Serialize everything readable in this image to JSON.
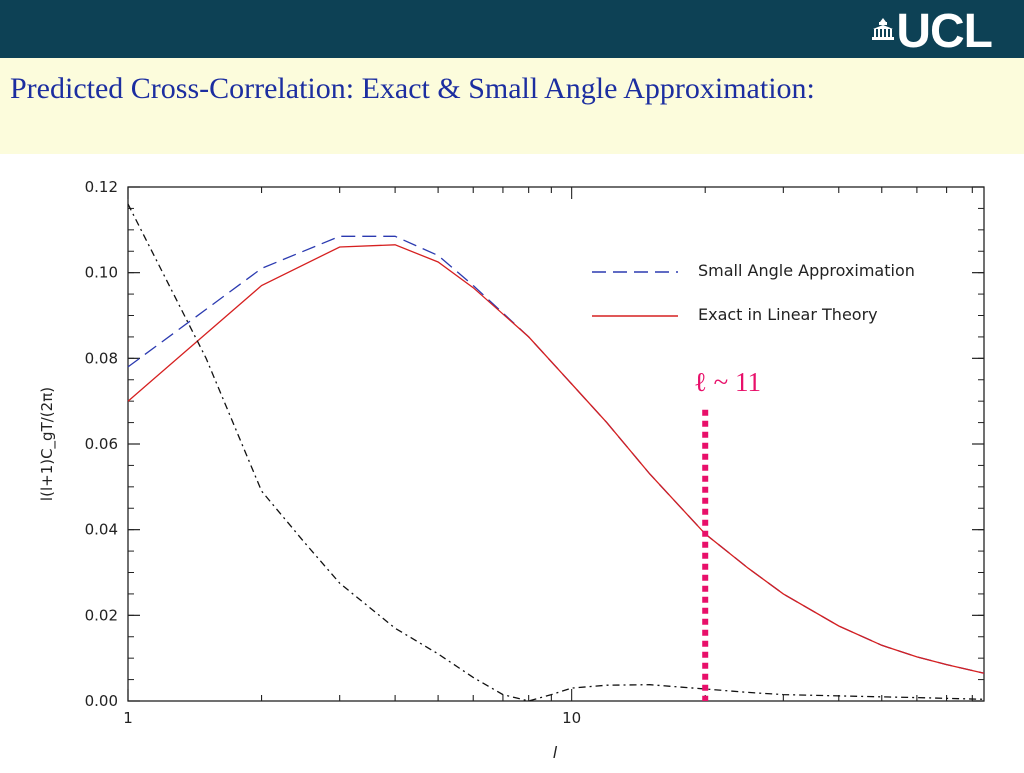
{
  "header": {
    "logo_text": "UCL",
    "title": "Predicted Cross-Correlation: Exact & Small Angle Approximation:"
  },
  "colors": {
    "header_bg": "#0d4155",
    "title_band_bg": "#fcfcdc",
    "title_text": "#1c2ea0",
    "series_small_angle": "#2b3ab0",
    "series_exact": "#d62020",
    "series_third": "#111111",
    "marker": "#e8106a"
  },
  "chart_data": {
    "type": "line",
    "title": "",
    "xlabel": "l",
    "ylabel": "l(l+1)C_gT/(2π)",
    "x_scale": "log",
    "xlim": [
      1,
      85
    ],
    "ylim": [
      0,
      0.12
    ],
    "x_ticks": [
      {
        "value": 1,
        "label": "1"
      },
      {
        "value": 10,
        "label": "10"
      }
    ],
    "y_ticks": [
      {
        "value": 0.0,
        "label": "0.00"
      },
      {
        "value": 0.02,
        "label": "0.02"
      },
      {
        "value": 0.04,
        "label": "0.04"
      },
      {
        "value": 0.06,
        "label": "0.06"
      },
      {
        "value": 0.08,
        "label": "0.08"
      },
      {
        "value": 0.1,
        "label": "0.10"
      },
      {
        "value": 0.12,
        "label": "0.12"
      }
    ],
    "legend_position": "top-right",
    "series": [
      {
        "name": "Small Angle Approximation",
        "style": "dashed",
        "points": [
          [
            1,
            0.078
          ],
          [
            2,
            0.101
          ],
          [
            3,
            0.1085
          ],
          [
            4,
            0.1085
          ],
          [
            5,
            0.104
          ],
          [
            6,
            0.097
          ],
          [
            8,
            0.085
          ],
          [
            10,
            0.074
          ],
          [
            12,
            0.065
          ],
          [
            15,
            0.053
          ],
          [
            20,
            0.039
          ],
          [
            25,
            0.031
          ],
          [
            30,
            0.025
          ],
          [
            40,
            0.0175
          ],
          [
            50,
            0.013
          ],
          [
            60,
            0.0103
          ],
          [
            70,
            0.0085
          ],
          [
            85,
            0.0065
          ]
        ]
      },
      {
        "name": "Exact in Linear Theory",
        "style": "solid",
        "points": [
          [
            1,
            0.07
          ],
          [
            2,
            0.097
          ],
          [
            3,
            0.106
          ],
          [
            4,
            0.1065
          ],
          [
            5,
            0.1025
          ],
          [
            6,
            0.0965
          ],
          [
            8,
            0.085
          ],
          [
            10,
            0.074
          ],
          [
            12,
            0.065
          ],
          [
            15,
            0.053
          ],
          [
            20,
            0.039
          ],
          [
            25,
            0.031
          ],
          [
            30,
            0.025
          ],
          [
            40,
            0.0175
          ],
          [
            50,
            0.013
          ],
          [
            60,
            0.0103
          ],
          [
            70,
            0.0085
          ],
          [
            85,
            0.0065
          ]
        ]
      },
      {
        "style": "dash-dot",
        "points": [
          [
            1,
            0.116
          ],
          [
            1.5,
            0.08
          ],
          [
            2,
            0.049
          ],
          [
            2.5,
            0.037
          ],
          [
            3,
            0.0275
          ],
          [
            4,
            0.017
          ],
          [
            5,
            0.011
          ],
          [
            6,
            0.0055
          ],
          [
            7,
            0.0015
          ],
          [
            8,
            0.0
          ],
          [
            9,
            0.0015
          ],
          [
            10,
            0.003
          ],
          [
            12,
            0.0037
          ],
          [
            15,
            0.0038
          ],
          [
            20,
            0.0028
          ],
          [
            25,
            0.002
          ],
          [
            30,
            0.0015
          ],
          [
            40,
            0.0012
          ],
          [
            60,
            0.0008
          ],
          [
            85,
            0.0004
          ]
        ]
      }
    ],
    "annotations": [
      {
        "text": "ℓ ~ 11",
        "marker_x": 20,
        "marker_y_top": 0.068,
        "style": "dotted-vertical"
      }
    ]
  }
}
